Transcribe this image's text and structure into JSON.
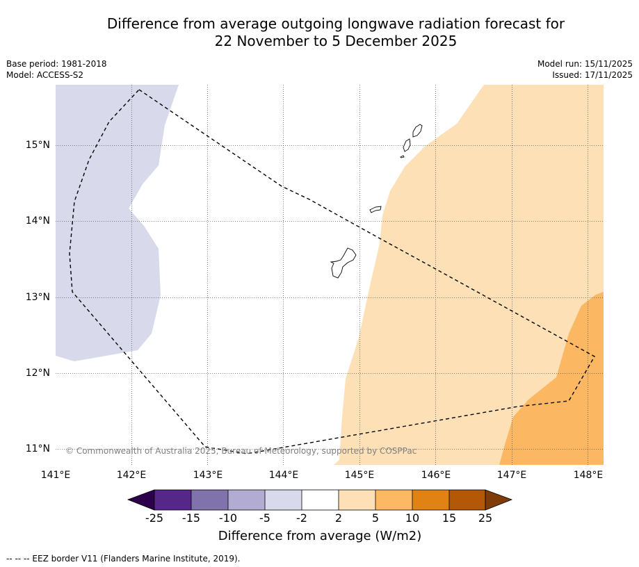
{
  "title": {
    "line1": "Difference from average outgoing longwave radiation forecast for",
    "line2": "22 November to 5 December 2025"
  },
  "meta": {
    "base_period": "Base period: 1981-2018",
    "model": "Model: ACCESS-S2",
    "model_run": "Model run: 15/11/2025",
    "issued": "Issued: 17/11/2025"
  },
  "map": {
    "lat_labels": [
      "15°N",
      "14°N",
      "13°N",
      "12°N",
      "11°N"
    ],
    "lon_labels": [
      "141°E",
      "142°E",
      "143°E",
      "144°E",
      "145°E",
      "146°E",
      "147°E",
      "148°E"
    ],
    "copyright": "© Commonwealth of Australia 2025, Bureau of Meteorology, supported by COSPPac",
    "colors": {
      "minus5_to_minus2": "#d8d9ea",
      "plus2_to_plus5": "#fde0b6",
      "plus5_to_plus10": "#fbb762"
    }
  },
  "colorbar": {
    "ticks": [
      "-25",
      "-15",
      "-10",
      "-5",
      "-2",
      "2",
      "5",
      "10",
      "15",
      "25"
    ],
    "colors": [
      "#2d004b",
      "#542788",
      "#8073ac",
      "#b2abd2",
      "#d8daeb",
      "#ffffff",
      "#fee0b6",
      "#fdb863",
      "#e08214",
      "#b35806",
      "#7f3b08"
    ],
    "label": "Difference from average (W/m2)"
  },
  "footer": {
    "legend_text": "--  --  -- EEZ border V11 (Flanders Marine Institute, 2019)."
  }
}
